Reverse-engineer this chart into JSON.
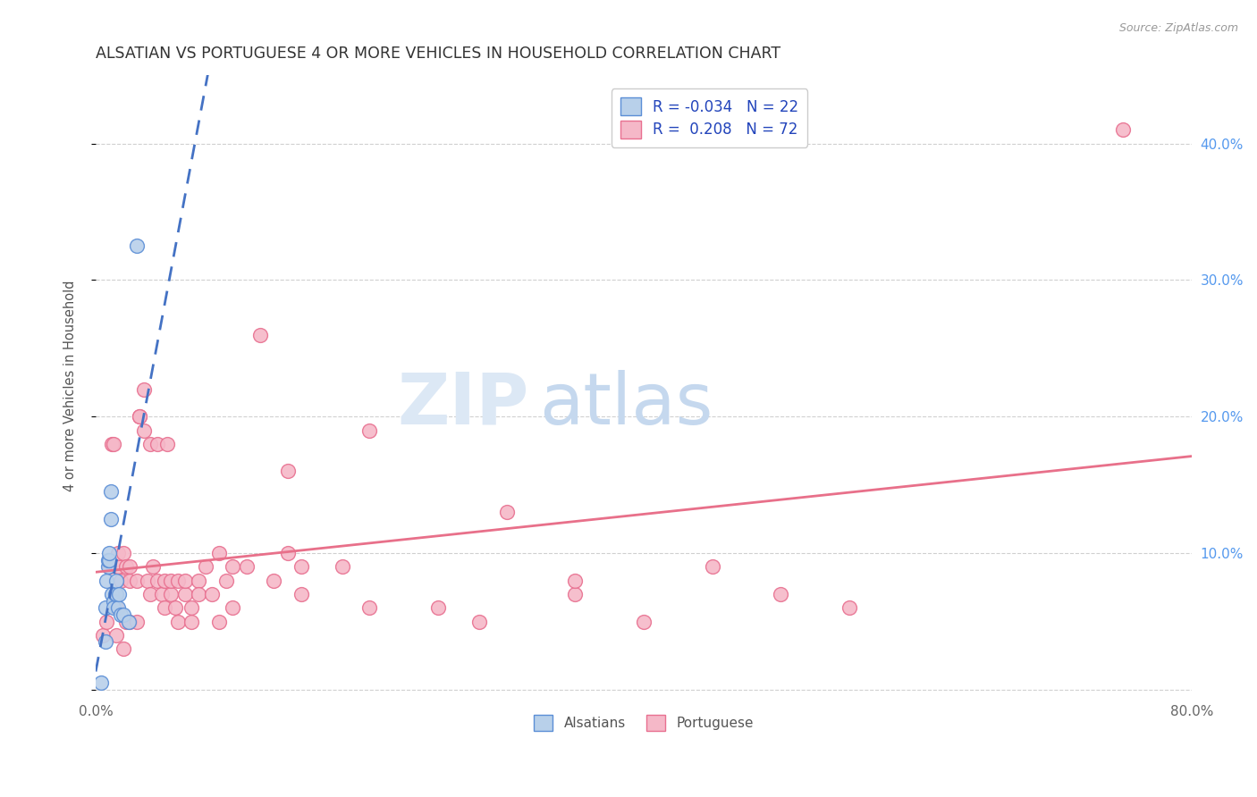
{
  "title": "ALSATIAN VS PORTUGUESE 4 OR MORE VEHICLES IN HOUSEHOLD CORRELATION CHART",
  "source": "Source: ZipAtlas.com",
  "ylabel": "4 or more Vehicles in Household",
  "xlabel": "",
  "xlim": [
    0.0,
    0.8
  ],
  "ylim": [
    -0.005,
    0.45
  ],
  "xticks": [
    0.0,
    0.1,
    0.2,
    0.3,
    0.4,
    0.5,
    0.6,
    0.7,
    0.8
  ],
  "yticks": [
    0.0,
    0.1,
    0.2,
    0.3,
    0.4
  ],
  "yticks_right_labels": [
    "",
    "10.0%",
    "20.0%",
    "30.0%",
    "40.0%"
  ],
  "watermark_zip": "ZIP",
  "watermark_atlas": "atlas",
  "legend_r_alsatian": "-0.034",
  "legend_n_alsatian": "22",
  "legend_r_portuguese": "0.208",
  "legend_n_portuguese": "72",
  "alsatian_fill": "#b8d0ea",
  "alsatian_edge": "#5b8ed6",
  "portuguese_fill": "#f5b8c8",
  "portuguese_edge": "#e87090",
  "alsatian_line_color": "#4472c4",
  "portuguese_line_color": "#e8708a",
  "grid_color": "#d0d0d0",
  "background_color": "#ffffff",
  "alsatian_x": [
    0.004,
    0.007,
    0.007,
    0.008,
    0.009,
    0.009,
    0.01,
    0.01,
    0.011,
    0.011,
    0.012,
    0.013,
    0.013,
    0.014,
    0.015,
    0.015,
    0.016,
    0.017,
    0.018,
    0.02,
    0.024,
    0.03
  ],
  "alsatian_y": [
    0.005,
    0.035,
    0.06,
    0.08,
    0.09,
    0.095,
    0.095,
    0.1,
    0.125,
    0.145,
    0.07,
    0.065,
    0.06,
    0.07,
    0.07,
    0.08,
    0.06,
    0.07,
    0.055,
    0.055,
    0.05,
    0.325
  ],
  "portuguese_x": [
    0.005,
    0.008,
    0.01,
    0.01,
    0.012,
    0.013,
    0.015,
    0.015,
    0.016,
    0.016,
    0.018,
    0.02,
    0.02,
    0.022,
    0.022,
    0.025,
    0.025,
    0.025,
    0.03,
    0.03,
    0.032,
    0.032,
    0.035,
    0.035,
    0.038,
    0.04,
    0.04,
    0.042,
    0.045,
    0.045,
    0.048,
    0.05,
    0.05,
    0.052,
    0.055,
    0.055,
    0.058,
    0.06,
    0.06,
    0.065,
    0.065,
    0.07,
    0.07,
    0.075,
    0.075,
    0.08,
    0.085,
    0.09,
    0.09,
    0.095,
    0.1,
    0.1,
    0.11,
    0.12,
    0.13,
    0.14,
    0.14,
    0.15,
    0.15,
    0.18,
    0.2,
    0.2,
    0.25,
    0.28,
    0.3,
    0.35,
    0.35,
    0.4,
    0.45,
    0.5,
    0.55,
    0.75
  ],
  "portuguese_y": [
    0.04,
    0.05,
    0.09,
    0.09,
    0.18,
    0.18,
    0.04,
    0.06,
    0.09,
    0.1,
    0.08,
    0.03,
    0.1,
    0.05,
    0.09,
    0.05,
    0.08,
    0.09,
    0.05,
    0.08,
    0.2,
    0.2,
    0.19,
    0.22,
    0.08,
    0.07,
    0.18,
    0.09,
    0.08,
    0.18,
    0.07,
    0.06,
    0.08,
    0.18,
    0.07,
    0.08,
    0.06,
    0.05,
    0.08,
    0.07,
    0.08,
    0.05,
    0.06,
    0.08,
    0.07,
    0.09,
    0.07,
    0.1,
    0.05,
    0.08,
    0.06,
    0.09,
    0.09,
    0.26,
    0.08,
    0.1,
    0.16,
    0.07,
    0.09,
    0.09,
    0.06,
    0.19,
    0.06,
    0.05,
    0.13,
    0.07,
    0.08,
    0.05,
    0.09,
    0.07,
    0.06,
    0.41
  ]
}
